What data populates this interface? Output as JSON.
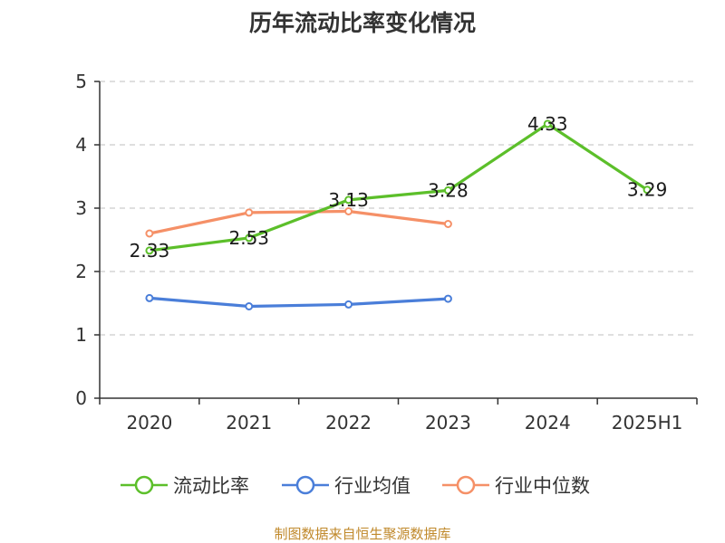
{
  "title": "历年流动比率变化情况",
  "source": "制图数据来自恒生聚源数据库",
  "colors": {
    "current_ratio": "#5cbf2a",
    "industry_avg": "#4a7ed9",
    "industry_median": "#f59067",
    "axis": "#333333",
    "grid": "#cccccc",
    "source_text": "#c0892b"
  },
  "chart_data": {
    "type": "line",
    "title": "历年流动比率变化情况",
    "categories": [
      "2020",
      "2021",
      "2022",
      "2023",
      "2024",
      "2025H1"
    ],
    "ylim": [
      0,
      5
    ],
    "yticks": [
      "0",
      "1",
      "2",
      "3",
      "4",
      "5"
    ],
    "grid": true,
    "legend_position": "bottom",
    "series": [
      {
        "name": "流动比率",
        "values": [
          2.33,
          2.53,
          3.13,
          3.28,
          4.33,
          3.29
        ],
        "labels": [
          "2.33",
          "2.53",
          "3.13",
          "3.28",
          "4.33",
          "3.29"
        ]
      },
      {
        "name": "行业均值",
        "values": [
          1.58,
          1.45,
          1.48,
          1.57,
          null,
          null
        ]
      },
      {
        "name": "行业中位数",
        "values": [
          2.6,
          2.93,
          2.95,
          2.75,
          null,
          null
        ]
      }
    ]
  }
}
